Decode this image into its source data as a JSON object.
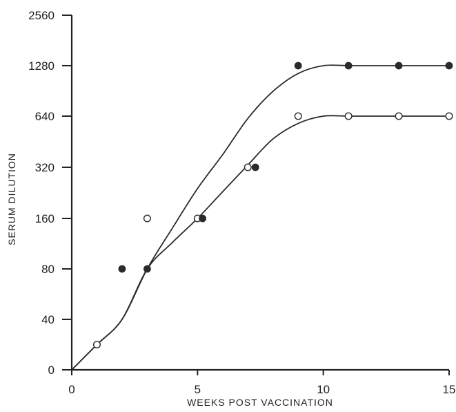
{
  "chart_data": {
    "type": "scatter",
    "title": "",
    "xlabel": "WEEKS POST VACCINATION",
    "ylabel": "SERUM DILUTION",
    "x_ticks": [
      "0",
      "5",
      "10",
      "15"
    ],
    "y_ticks": [
      "0",
      "40",
      "80",
      "160",
      "320",
      "640",
      "1280",
      "2560"
    ],
    "y_scale": "log2 with 0 baseline",
    "xlim": [
      0,
      15
    ],
    "ylim": [
      0,
      2560
    ],
    "grid": false,
    "legend": "none",
    "series": [
      {
        "marker": "open-circle",
        "points": [
          {
            "x": 1,
            "y": 20
          },
          {
            "x": 3,
            "y": 160
          },
          {
            "x": 5,
            "y": 160
          },
          {
            "x": 7,
            "y": 320
          },
          {
            "x": 9,
            "y": 640
          },
          {
            "x": 11,
            "y": 640
          },
          {
            "x": 13,
            "y": 640
          },
          {
            "x": 15,
            "y": 640
          }
        ],
        "curve": [
          {
            "x": 0,
            "y": 0
          },
          {
            "x": 1,
            "y": 20
          },
          {
            "x": 2,
            "y": 40
          },
          {
            "x": 3,
            "y": 80
          },
          {
            "x": 4,
            "y": 115
          },
          {
            "x": 5,
            "y": 160
          },
          {
            "x": 6,
            "y": 230
          },
          {
            "x": 7,
            "y": 330
          },
          {
            "x": 8,
            "y": 470
          },
          {
            "x": 9,
            "y": 580
          },
          {
            "x": 10,
            "y": 640
          },
          {
            "x": 11,
            "y": 640
          },
          {
            "x": 12,
            "y": 640
          },
          {
            "x": 13,
            "y": 640
          },
          {
            "x": 14,
            "y": 640
          },
          {
            "x": 15,
            "y": 640
          }
        ]
      },
      {
        "marker": "filled-circle",
        "points": [
          {
            "x": 2,
            "y": 80
          },
          {
            "x": 3,
            "y": 80
          },
          {
            "x": 5.2,
            "y": 160
          },
          {
            "x": 7.3,
            "y": 320
          },
          {
            "x": 9,
            "y": 1280
          },
          {
            "x": 11,
            "y": 1280
          },
          {
            "x": 13,
            "y": 1280
          },
          {
            "x": 15,
            "y": 1280
          }
        ],
        "curve": [
          {
            "x": 0,
            "y": 0
          },
          {
            "x": 1,
            "y": 20
          },
          {
            "x": 2,
            "y": 40
          },
          {
            "x": 3,
            "y": 80
          },
          {
            "x": 4,
            "y": 140
          },
          {
            "x": 5,
            "y": 240
          },
          {
            "x": 6,
            "y": 380
          },
          {
            "x": 7,
            "y": 620
          },
          {
            "x": 8,
            "y": 900
          },
          {
            "x": 9,
            "y": 1150
          },
          {
            "x": 10,
            "y": 1280
          },
          {
            "x": 11,
            "y": 1280
          },
          {
            "x": 12,
            "y": 1280
          },
          {
            "x": 13,
            "y": 1280
          },
          {
            "x": 14,
            "y": 1280
          },
          {
            "x": 15,
            "y": 1280
          }
        ]
      }
    ]
  },
  "colors": {
    "axis": "#222222",
    "text": "#1f1f1f",
    "curve": "#2a2a2a",
    "open_marker_fill": "#ffffff",
    "filled_marker_fill": "#2b2b2b",
    "background": "#ffffff"
  }
}
